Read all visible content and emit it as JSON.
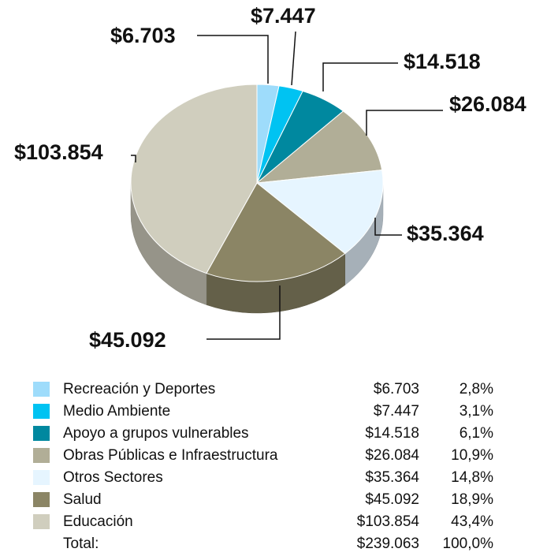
{
  "chart_data": {
    "type": "pie",
    "categories": [
      "Recreación y Deportes",
      "Medio Ambiente",
      "Apoyo a grupos vulnerables",
      "Obras Públicas e Infraestructura",
      "Otros Sectores",
      "Salud",
      "Educación"
    ],
    "values": [
      6703,
      7447,
      14518,
      26084,
      35364,
      45092,
      103854
    ],
    "value_labels": [
      "$6.703",
      "$7.447",
      "$14.518",
      "$26.084",
      "$35.364",
      "$45.092",
      "$103.854"
    ],
    "colors": [
      "#9edcfb",
      "#00c3f2",
      "#00889f",
      "#b1ae97",
      "#e6f5ff",
      "#8b8565",
      "#d0cebe"
    ],
    "shares": [
      2.8,
      3.1,
      6.1,
      10.9,
      14.8,
      18.9,
      43.4
    ],
    "share_labels": [
      "2,8%",
      "3,1%",
      "6,1%",
      "10,9%",
      "14,8%",
      "18,9%",
      "43,4%"
    ],
    "total_label": "Total:",
    "total": 239063,
    "total_value_label": "$239.063",
    "total_share": 100,
    "total_share_label": "100,0%"
  }
}
